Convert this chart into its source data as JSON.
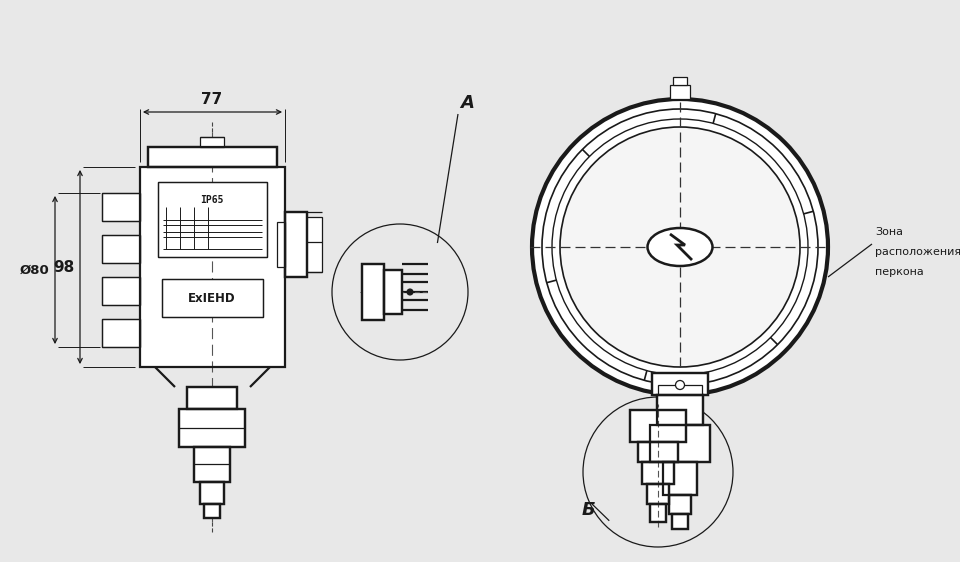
{
  "bg_color": "#e8e8e8",
  "line_color": "#1a1a1a",
  "lw_main": 1.6,
  "lw_thin": 0.9,
  "lw_dim": 0.8,
  "label_A": "A",
  "label_B": "Б",
  "dim_77": "77",
  "dim_98": "98",
  "dim_80": "Ø80",
  "label_zone1": "Зона",
  "label_zone2": "расположения",
  "label_zone3": "перкона",
  "label_ip65": "IP65",
  "label_ex": "ExIEHD"
}
